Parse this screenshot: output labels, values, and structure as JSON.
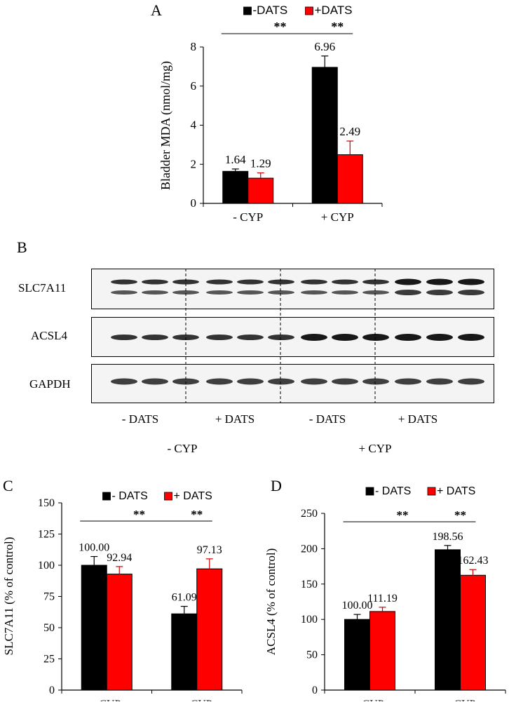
{
  "colors": {
    "minus": "#000000",
    "plus": "#ff0000",
    "error": "#d00000"
  },
  "panel_a": {
    "letter": "A"
  },
  "panel_b": {
    "letter": "B",
    "rows": [
      "SLC7A11",
      "ACSL4",
      "GAPDH"
    ],
    "lane_groups": [
      "- DATS",
      "+ DATS",
      "- DATS",
      "+ DATS"
    ],
    "cyp_groups": [
      "- CYP",
      "+ CYP"
    ]
  },
  "panel_c": {
    "letter": "C"
  },
  "panel_d": {
    "letter": "D"
  },
  "chart_data": [
    {
      "panel": "A",
      "type": "bar",
      "categories": [
        "- CYP",
        "+ CYP"
      ],
      "series": [
        {
          "name": "-DATS",
          "values": [
            1.64,
            6.96
          ],
          "errors": [
            0.12,
            0.58
          ]
        },
        {
          "name": "+DATS",
          "values": [
            1.29,
            2.49
          ],
          "errors": [
            0.27,
            0.7
          ]
        }
      ],
      "data_labels": [
        [
          "1.64",
          "6.96"
        ],
        [
          "1.29",
          "2.49"
        ]
      ],
      "ylabel": "Bladder MDA (nmol/mg)",
      "ylim": [
        0,
        8
      ],
      "yticks": [
        0,
        2,
        4,
        6,
        8
      ],
      "significance": [
        "**",
        "**"
      ],
      "legend": "top"
    },
    {
      "panel": "C",
      "type": "bar",
      "categories": [
        "- CYP",
        "+ CYP"
      ],
      "series": [
        {
          "name": "- DATS",
          "values": [
            100.0,
            61.09
          ],
          "errors": [
            7,
            6
          ]
        },
        {
          "name": "+ DATS",
          "values": [
            92.94,
            97.13
          ],
          "errors": [
            6,
            8
          ]
        }
      ],
      "data_labels": [
        [
          "100.00",
          "61.09"
        ],
        [
          "92.94",
          "97.13"
        ]
      ],
      "ylabel": "SLC7A11 (% of control)",
      "ylim": [
        0,
        150
      ],
      "yticks": [
        0,
        25,
        50,
        75,
        100,
        125,
        150
      ],
      "significance": [
        "**",
        "**"
      ],
      "legend": "top"
    },
    {
      "panel": "D",
      "type": "bar",
      "categories": [
        "- CYP",
        "+ CYP"
      ],
      "series": [
        {
          "name": "- DATS",
          "values": [
            100.0,
            198.56
          ],
          "errors": [
            7,
            6
          ]
        },
        {
          "name": "+ DATS",
          "values": [
            111.19,
            162.43
          ],
          "errors": [
            6,
            8
          ]
        }
      ],
      "data_labels": [
        [
          "100.00",
          "198.56"
        ],
        [
          "111.19",
          "162.43"
        ]
      ],
      "ylabel": "ACSL4 (% of control)",
      "ylim": [
        0,
        250
      ],
      "yticks": [
        0,
        50,
        100,
        150,
        200,
        250
      ],
      "significance": [
        "**",
        "**"
      ],
      "legend": "top"
    }
  ]
}
